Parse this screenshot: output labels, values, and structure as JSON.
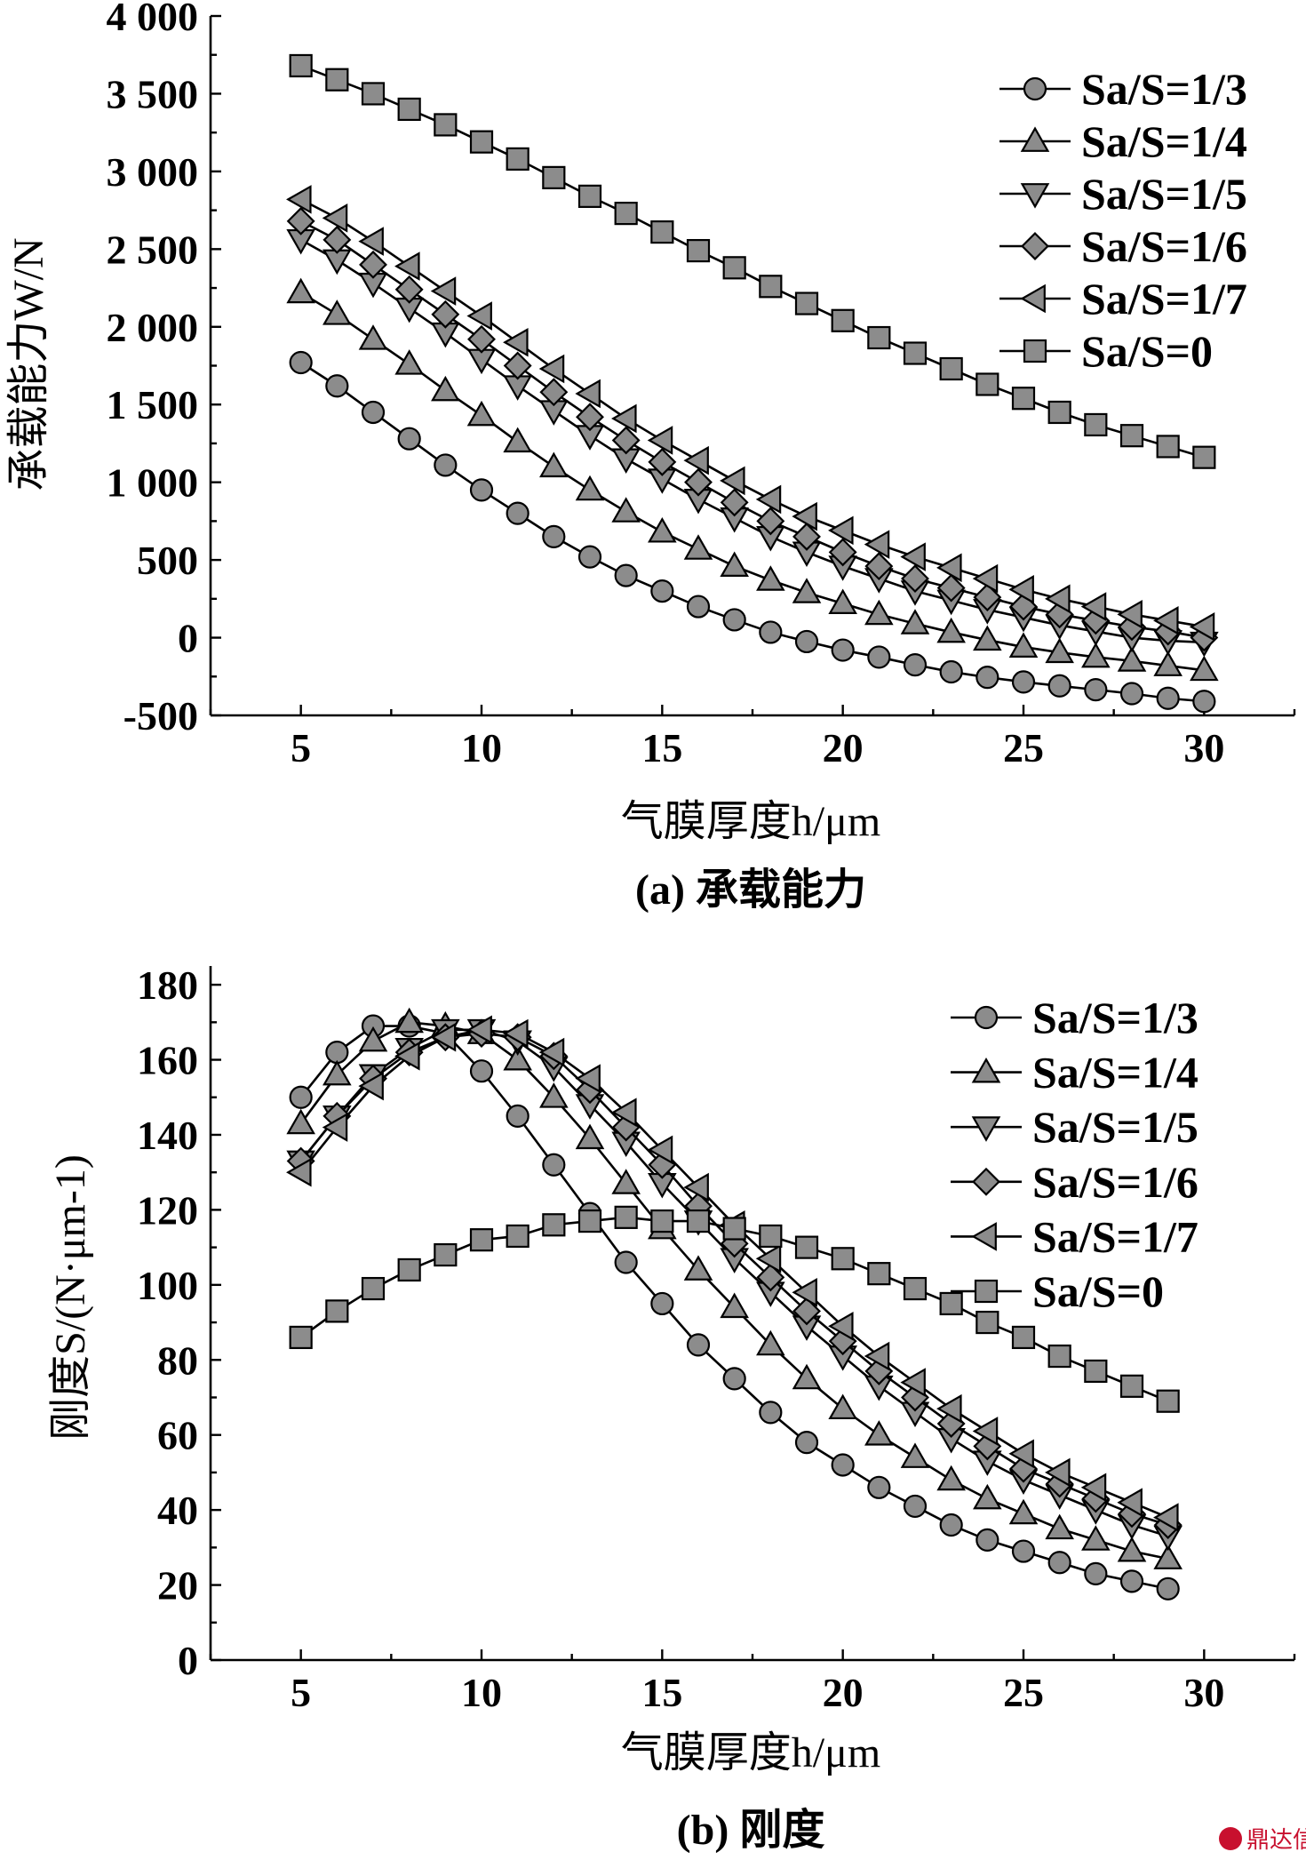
{
  "charts": [
    {
      "caption": "(a) 承载能力",
      "xlabel": "气膜厚度h/μm",
      "ylabel": "承载能力W/N",
      "x_ticks": [
        "5",
        "10",
        "15",
        "20",
        "25",
        "30"
      ],
      "y_ticks": [
        "-500",
        "0",
        "500",
        "1 000",
        "1 500",
        "2 000",
        "2 500",
        "3 000",
        "3 500",
        "4 000"
      ],
      "legend": [
        "Sa/S=1/3",
        "Sa/S=1/4",
        "Sa/S=1/5",
        "Sa/S=1/6",
        "Sa/S=1/7",
        "Sa/S=0"
      ]
    },
    {
      "caption": "(b) 刚度",
      "xlabel": "气膜厚度h/μm",
      "ylabel": "刚度S/(N·μm-1)",
      "x_ticks": [
        "5",
        "10",
        "15",
        "20",
        "25",
        "30"
      ],
      "y_ticks": [
        "0",
        "20",
        "40",
        "60",
        "80",
        "100",
        "120",
        "140",
        "160",
        "180"
      ],
      "legend": [
        "Sa/S=1/3",
        "Sa/S=1/4",
        "Sa/S=1/5",
        "Sa/S=1/6",
        "Sa/S=1/7",
        "Sa/S=0"
      ]
    }
  ],
  "watermark": "鼎达信",
  "chart_data": [
    {
      "type": "line",
      "title": "(a) 承载能力",
      "xlabel": "气膜厚度h/μm",
      "ylabel": "承载能力W/N",
      "xlim": [
        2.5,
        32.5
      ],
      "ylim": [
        -500,
        4000
      ],
      "x": [
        5,
        6,
        7,
        8,
        9,
        10,
        11,
        12,
        13,
        14,
        15,
        16,
        17,
        18,
        19,
        20,
        21,
        22,
        23,
        24,
        25,
        26,
        27,
        28,
        29,
        30
      ],
      "legend_position": "top-right",
      "grid": false,
      "series": [
        {
          "name": "Sa/S=1/3",
          "marker": "circle",
          "values": [
            1770,
            1620,
            1450,
            1280,
            1110,
            950,
            800,
            650,
            520,
            400,
            300,
            200,
            115,
            35,
            -25,
            -80,
            -125,
            -175,
            -220,
            -255,
            -285,
            -310,
            -335,
            -360,
            -390,
            -410
          ]
        },
        {
          "name": "Sa/S=1/4",
          "marker": "triangle-up",
          "values": [
            2220,
            2080,
            1920,
            1760,
            1590,
            1430,
            1260,
            1100,
            950,
            810,
            680,
            570,
            460,
            370,
            290,
            220,
            150,
            90,
            35,
            -15,
            -60,
            -95,
            -125,
            -150,
            -180,
            -210
          ]
        },
        {
          "name": "Sa/S=1/5",
          "marker": "triangle-down",
          "values": [
            2560,
            2430,
            2280,
            2120,
            1960,
            1790,
            1620,
            1460,
            1300,
            1150,
            1020,
            890,
            770,
            650,
            550,
            460,
            380,
            300,
            240,
            180,
            130,
            80,
            40,
            0,
            -20,
            -30
          ]
        },
        {
          "name": "Sa/S=1/6",
          "marker": "diamond",
          "values": [
            2680,
            2560,
            2400,
            2240,
            2080,
            1920,
            1750,
            1580,
            1420,
            1270,
            1130,
            1000,
            870,
            750,
            650,
            550,
            460,
            380,
            320,
            260,
            200,
            150,
            110,
            70,
            40,
            0
          ]
        },
        {
          "name": "Sa/S=1/7",
          "marker": "triangle-left",
          "values": [
            2820,
            2700,
            2550,
            2390,
            2230,
            2070,
            1900,
            1730,
            1570,
            1410,
            1270,
            1140,
            1010,
            890,
            780,
            690,
            600,
            520,
            450,
            380,
            310,
            250,
            200,
            150,
            110,
            70
          ]
        },
        {
          "name": "Sa/S=0",
          "marker": "square",
          "values": [
            3680,
            3590,
            3500,
            3400,
            3300,
            3190,
            3080,
            2960,
            2840,
            2730,
            2610,
            2490,
            2380,
            2260,
            2150,
            2040,
            1930,
            1830,
            1730,
            1630,
            1540,
            1450,
            1370,
            1300,
            1230,
            1160
          ]
        }
      ]
    },
    {
      "type": "line",
      "title": "(b) 刚度",
      "xlabel": "气膜厚度h/μm",
      "ylabel": "刚度S/(N·μm-1)",
      "xlim": [
        2.5,
        32.5
      ],
      "ylim": [
        0,
        185
      ],
      "x": [
        5,
        6,
        7,
        8,
        9,
        10,
        11,
        12,
        13,
        14,
        15,
        16,
        17,
        18,
        19,
        20,
        21,
        22,
        23,
        24,
        25,
        26,
        27,
        28,
        29
      ],
      "legend_position": "top-right",
      "grid": false,
      "series": [
        {
          "name": "Sa/S=1/3",
          "marker": "circle",
          "values": [
            150,
            162,
            169,
            169,
            167,
            157,
            145,
            132,
            119,
            106,
            95,
            84,
            75,
            66,
            58,
            52,
            46,
            41,
            36,
            32,
            29,
            26,
            23,
            21,
            19
          ]
        },
        {
          "name": "Sa/S=1/4",
          "marker": "triangle-up",
          "values": [
            143,
            156,
            165,
            170,
            169,
            167,
            160,
            150,
            139,
            127,
            115,
            104,
            94,
            84,
            75,
            67,
            60,
            54,
            48,
            43,
            39,
            35,
            32,
            29,
            27
          ]
        },
        {
          "name": "Sa/S=1/5",
          "marker": "triangle-down",
          "values": [
            133,
            145,
            156,
            163,
            168,
            168,
            165,
            158,
            148,
            138,
            127,
            117,
            107,
            98,
            89,
            81,
            73,
            66,
            59,
            53,
            48,
            44,
            40,
            36,
            33
          ]
        },
        {
          "name": "Sa/S=1/6",
          "marker": "diamond",
          "values": [
            133,
            145,
            155,
            162,
            166,
            167,
            166,
            161,
            152,
            142,
            132,
            121,
            111,
            102,
            93,
            85,
            77,
            70,
            63,
            57,
            51,
            47,
            43,
            39,
            36
          ]
        },
        {
          "name": "Sa/S=1/7",
          "marker": "triangle-left",
          "values": [
            130,
            142,
            153,
            161,
            166,
            168,
            167,
            162,
            155,
            146,
            136,
            126,
            116,
            107,
            98,
            89,
            81,
            74,
            67,
            61,
            55,
            50,
            46,
            42,
            38
          ]
        },
        {
          "name": "Sa/S=0",
          "marker": "square",
          "values": [
            86,
            93,
            99,
            104,
            108,
            112,
            113,
            116,
            117,
            118,
            117,
            117,
            115,
            113,
            110,
            107,
            103,
            99,
            95,
            90,
            86,
            81,
            77,
            73,
            69
          ]
        }
      ]
    }
  ]
}
